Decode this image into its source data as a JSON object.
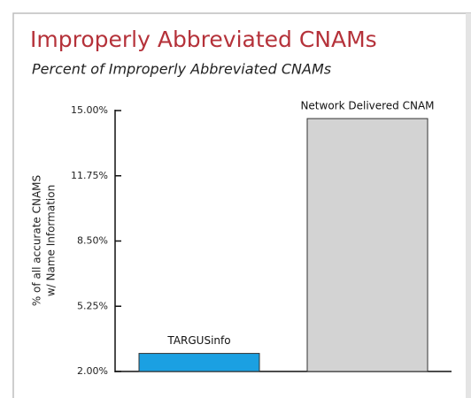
{
  "chart_data": {
    "type": "bar",
    "title": "Improperly Abbreviated CNAMs",
    "subtitle": "Percent of  Improperly Abbreviated CNAMs",
    "y_label": [
      "% of all accurate CNAMS",
      "w/ Name Information"
    ],
    "categories": [
      "TARGUSinfo",
      "Network Delivered CNAM"
    ],
    "values": [
      2.9,
      14.6
    ],
    "colors": [
      "#1ba0e2",
      "#d3d3d3"
    ],
    "ylim": [
      2,
      15
    ],
    "yticks": [
      {
        "value": 2,
        "label": "2.00%"
      },
      {
        "value": 5.25,
        "label": "5.25%"
      },
      {
        "value": 8.5,
        "label": "8.50%"
      },
      {
        "value": 11.75,
        "label": "11.75%"
      },
      {
        "value": 15,
        "label": "15.00%"
      }
    ]
  }
}
